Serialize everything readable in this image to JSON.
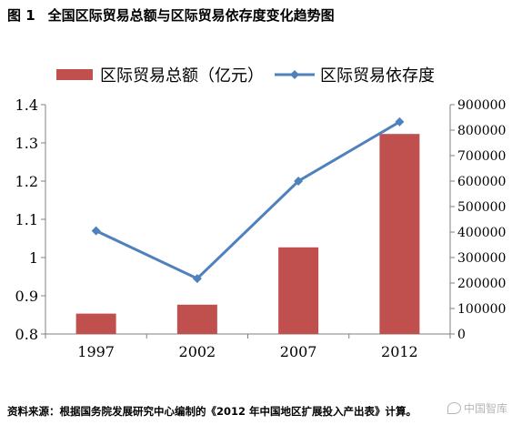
{
  "figure": {
    "number": "图 1",
    "title": "全国区际贸易总额与区际贸易依存度变化趋势图"
  },
  "source_note": "资料来源：根据国务院发展研究中心编制的《2012 年中国地区扩展投入产出表》计算。",
  "watermark": "中国智库",
  "chart_data": {
    "type": "bar+line",
    "categories": [
      "1997",
      "2002",
      "2007",
      "2012"
    ],
    "series": [
      {
        "name": "区际贸易总额（亿元）",
        "type": "bar",
        "axis": "right",
        "values": [
          80000,
          115000,
          340000,
          785000
        ],
        "color": "#c0504d"
      },
      {
        "name": "区际贸易依存度",
        "type": "line",
        "axis": "left",
        "values": [
          1.07,
          0.945,
          1.2,
          1.355
        ],
        "color": "#4f81bd"
      }
    ],
    "y_left": {
      "ylim": [
        0.8,
        1.4
      ],
      "ticks": [
        0.8,
        0.9,
        1,
        1.1,
        1.2,
        1.3,
        1.4
      ],
      "tick_labels": [
        "0.8",
        "0.9",
        "1",
        "1.1",
        "1.2",
        "1.3",
        "1.4"
      ]
    },
    "y_right": {
      "ylim": [
        0,
        900000
      ],
      "ticks": [
        0,
        100000,
        200000,
        300000,
        400000,
        500000,
        600000,
        700000,
        800000,
        900000
      ],
      "tick_labels": [
        "0",
        "100000",
        "200000",
        "300000",
        "400000",
        "500000",
        "600000",
        "700000",
        "800000",
        "900000"
      ]
    },
    "grid": false,
    "legend_position": "top"
  }
}
